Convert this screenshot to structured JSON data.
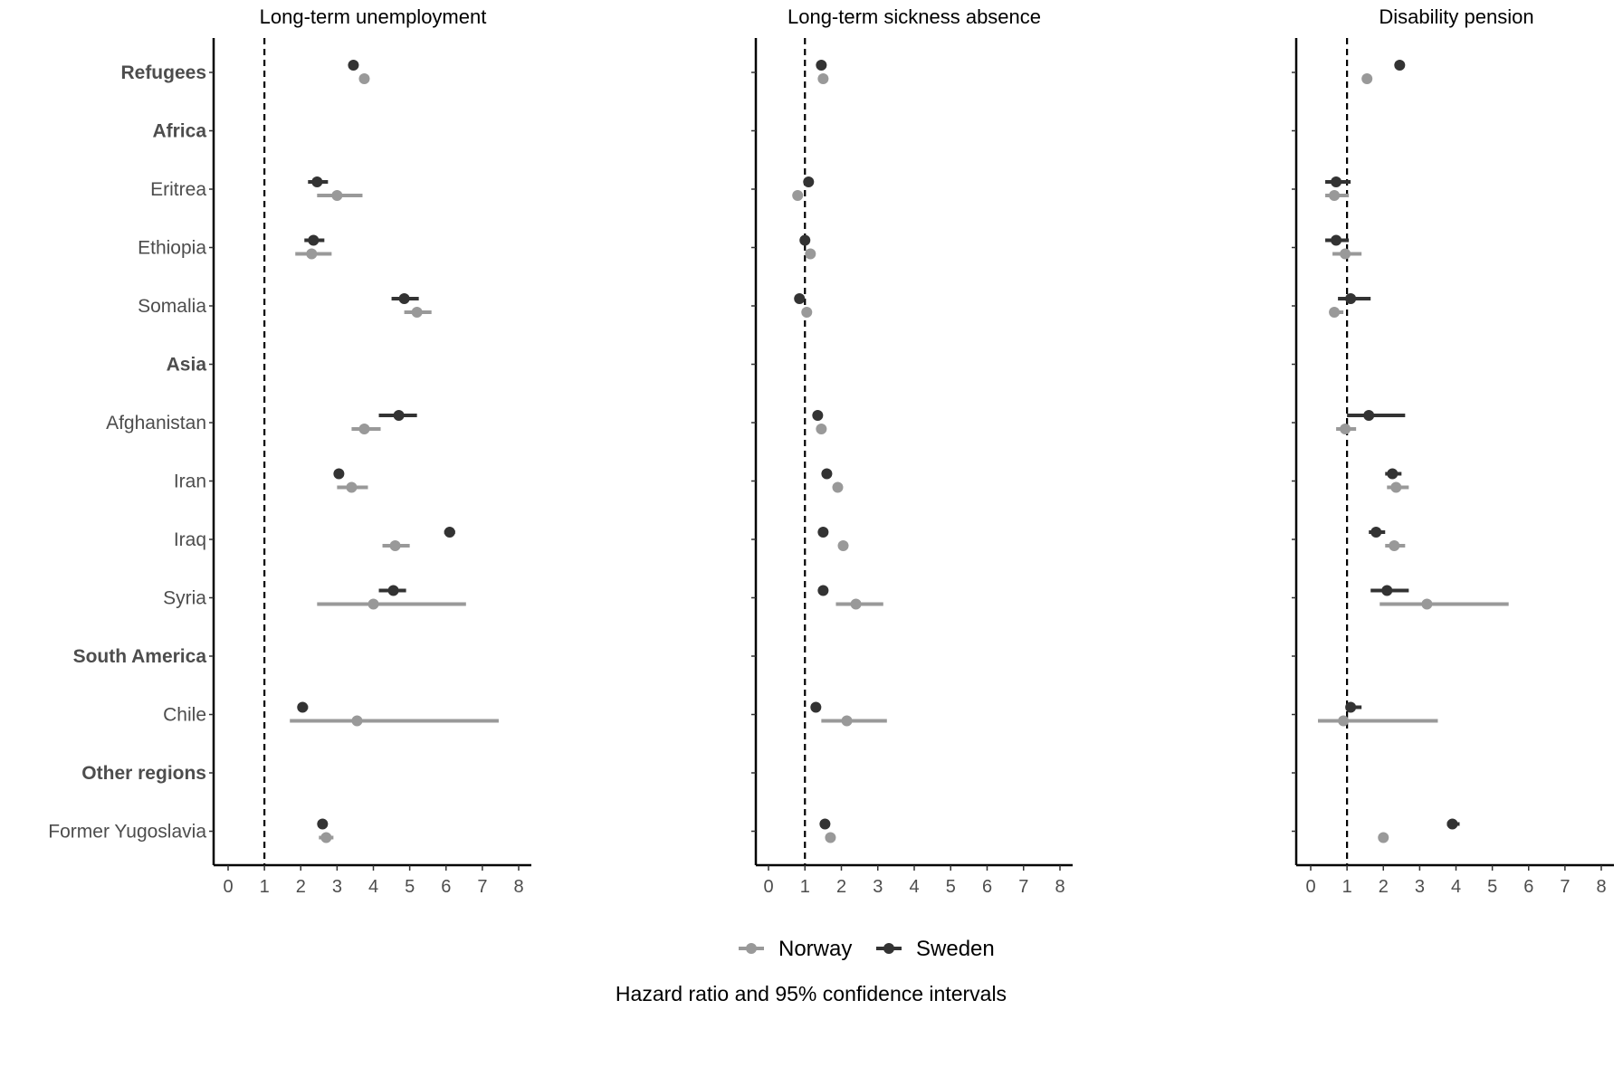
{
  "chart_data": {
    "type": "scatter",
    "subtype": "forest-plot",
    "xlabel": "Hazard ratio and 95% confidence intervals",
    "xlim": [
      -0.4,
      8.4
    ],
    "xticks": [
      0,
      1,
      2,
      3,
      4,
      5,
      6,
      7,
      8
    ],
    "reference_line": 1,
    "legend": {
      "placement": "bottom",
      "entries": [
        "Norway",
        "Sweden"
      ]
    },
    "colors": {
      "Norway": "#999999",
      "Sweden": "#333333"
    },
    "rows": [
      {
        "label": "Refugees",
        "heading": true
      },
      {
        "label": "Africa",
        "heading": true
      },
      {
        "label": "Eritrea",
        "heading": false
      },
      {
        "label": "Ethiopia",
        "heading": false
      },
      {
        "label": "Somalia",
        "heading": false
      },
      {
        "label": "Asia",
        "heading": true
      },
      {
        "label": "Afghanistan",
        "heading": false
      },
      {
        "label": "Iran",
        "heading": false
      },
      {
        "label": "Iraq",
        "heading": false
      },
      {
        "label": "Syria",
        "heading": false
      },
      {
        "label": "South America",
        "heading": true
      },
      {
        "label": "Chile",
        "heading": false
      },
      {
        "label": "Other regions",
        "heading": true
      },
      {
        "label": "Former Yugoslavia",
        "heading": false
      }
    ],
    "panels": [
      {
        "title": "Long-term unemployment",
        "series": [
          {
            "name": "Sweden",
            "points": [
              {
                "row": 0,
                "hr": 3.45,
                "lo": 3.4,
                "hi": 3.5
              },
              {
                "row": 2,
                "hr": 2.45,
                "lo": 2.2,
                "hi": 2.75
              },
              {
                "row": 3,
                "hr": 2.35,
                "lo": 2.1,
                "hi": 2.65
              },
              {
                "row": 4,
                "hr": 4.85,
                "lo": 4.5,
                "hi": 5.25
              },
              {
                "row": 6,
                "hr": 4.7,
                "lo": 4.15,
                "hi": 5.2
              },
              {
                "row": 7,
                "hr": 3.05,
                "lo": 3.0,
                "hi": 3.1
              },
              {
                "row": 8,
                "hr": 6.1,
                "lo": 5.95,
                "hi": 6.25
              },
              {
                "row": 9,
                "hr": 4.55,
                "lo": 4.15,
                "hi": 4.9
              },
              {
                "row": 11,
                "hr": 2.05,
                "lo": 1.95,
                "hi": 2.2
              },
              {
                "row": 13,
                "hr": 2.6,
                "lo": 2.55,
                "hi": 2.65
              }
            ]
          },
          {
            "name": "Norway",
            "points": [
              {
                "row": 0,
                "hr": 3.75,
                "lo": 3.7,
                "hi": 3.8
              },
              {
                "row": 2,
                "hr": 3.0,
                "lo": 2.45,
                "hi": 3.7
              },
              {
                "row": 3,
                "hr": 2.3,
                "lo": 1.85,
                "hi": 2.85
              },
              {
                "row": 4,
                "hr": 5.2,
                "lo": 4.85,
                "hi": 5.6
              },
              {
                "row": 6,
                "hr": 3.75,
                "lo": 3.4,
                "hi": 4.2
              },
              {
                "row": 7,
                "hr": 3.4,
                "lo": 3.0,
                "hi": 3.85
              },
              {
                "row": 8,
                "hr": 4.6,
                "lo": 4.25,
                "hi": 5.0
              },
              {
                "row": 9,
                "hr": 4.0,
                "lo": 2.45,
                "hi": 6.55
              },
              {
                "row": 11,
                "hr": 3.55,
                "lo": 1.7,
                "hi": 7.45
              },
              {
                "row": 13,
                "hr": 2.7,
                "lo": 2.5,
                "hi": 2.9
              }
            ]
          }
        ]
      },
      {
        "title": "Long-term sickness absence",
        "series": [
          {
            "name": "Sweden",
            "points": [
              {
                "row": 0,
                "hr": 1.45,
                "lo": 1.4,
                "hi": 1.5
              },
              {
                "row": 2,
                "hr": 1.1,
                "lo": 1.05,
                "hi": 1.15
              },
              {
                "row": 3,
                "hr": 1.0,
                "lo": 0.95,
                "hi": 1.05
              },
              {
                "row": 4,
                "hr": 0.85,
                "lo": 0.8,
                "hi": 0.9
              },
              {
                "row": 6,
                "hr": 1.35,
                "lo": 1.25,
                "hi": 1.45
              },
              {
                "row": 7,
                "hr": 1.6,
                "lo": 1.55,
                "hi": 1.65
              },
              {
                "row": 8,
                "hr": 1.5,
                "lo": 1.45,
                "hi": 1.55
              },
              {
                "row": 9,
                "hr": 1.5,
                "lo": 1.45,
                "hi": 1.55
              },
              {
                "row": 11,
                "hr": 1.3,
                "lo": 1.25,
                "hi": 1.35
              },
              {
                "row": 13,
                "hr": 1.55,
                "lo": 1.5,
                "hi": 1.6
              }
            ]
          },
          {
            "name": "Norway",
            "points": [
              {
                "row": 0,
                "hr": 1.5,
                "lo": 1.45,
                "hi": 1.55
              },
              {
                "row": 2,
                "hr": 0.8,
                "lo": 0.75,
                "hi": 0.85
              },
              {
                "row": 3,
                "hr": 1.15,
                "lo": 1.1,
                "hi": 1.2
              },
              {
                "row": 4,
                "hr": 1.05,
                "lo": 1.0,
                "hi": 1.1
              },
              {
                "row": 6,
                "hr": 1.45,
                "lo": 1.4,
                "hi": 1.5
              },
              {
                "row": 7,
                "hr": 1.9,
                "lo": 1.85,
                "hi": 1.95
              },
              {
                "row": 8,
                "hr": 2.05,
                "lo": 2.0,
                "hi": 2.1
              },
              {
                "row": 9,
                "hr": 2.4,
                "lo": 1.85,
                "hi": 3.15
              },
              {
                "row": 11,
                "hr": 2.15,
                "lo": 1.45,
                "hi": 3.25
              },
              {
                "row": 13,
                "hr": 1.7,
                "lo": 1.6,
                "hi": 1.8
              }
            ]
          }
        ]
      },
      {
        "title": "Disability pension",
        "series": [
          {
            "name": "Sweden",
            "points": [
              {
                "row": 0,
                "hr": 2.45,
                "lo": 2.4,
                "hi": 2.5
              },
              {
                "row": 2,
                "hr": 0.7,
                "lo": 0.4,
                "hi": 1.1
              },
              {
                "row": 3,
                "hr": 0.7,
                "lo": 0.4,
                "hi": 1.05
              },
              {
                "row": 4,
                "hr": 1.1,
                "lo": 0.75,
                "hi": 1.65
              },
              {
                "row": 6,
                "hr": 1.6,
                "lo": 1.0,
                "hi": 2.6
              },
              {
                "row": 7,
                "hr": 2.25,
                "lo": 2.05,
                "hi": 2.5
              },
              {
                "row": 8,
                "hr": 1.8,
                "lo": 1.6,
                "hi": 2.05
              },
              {
                "row": 9,
                "hr": 2.1,
                "lo": 1.65,
                "hi": 2.7
              },
              {
                "row": 11,
                "hr": 1.1,
                "lo": 1.0,
                "hi": 1.4
              },
              {
                "row": 13,
                "hr": 3.9,
                "lo": 3.75,
                "hi": 4.1
              }
            ]
          },
          {
            "name": "Norway",
            "points": [
              {
                "row": 0,
                "hr": 1.55,
                "lo": 1.5,
                "hi": 1.6
              },
              {
                "row": 2,
                "hr": 0.65,
                "lo": 0.4,
                "hi": 1.05
              },
              {
                "row": 3,
                "hr": 0.95,
                "lo": 0.6,
                "hi": 1.4
              },
              {
                "row": 4,
                "hr": 0.65,
                "lo": 0.6,
                "hi": 0.9
              },
              {
                "row": 6,
                "hr": 0.95,
                "lo": 0.7,
                "hi": 1.25
              },
              {
                "row": 7,
                "hr": 2.35,
                "lo": 2.1,
                "hi": 2.7
              },
              {
                "row": 8,
                "hr": 2.3,
                "lo": 2.05,
                "hi": 2.6
              },
              {
                "row": 9,
                "hr": 3.2,
                "lo": 1.9,
                "hi": 5.45
              },
              {
                "row": 11,
                "hr": 0.9,
                "lo": 0.2,
                "hi": 3.5
              },
              {
                "row": 13,
                "hr": 2.0,
                "lo": 1.95,
                "hi": 2.1
              }
            ]
          }
        ]
      }
    ]
  }
}
